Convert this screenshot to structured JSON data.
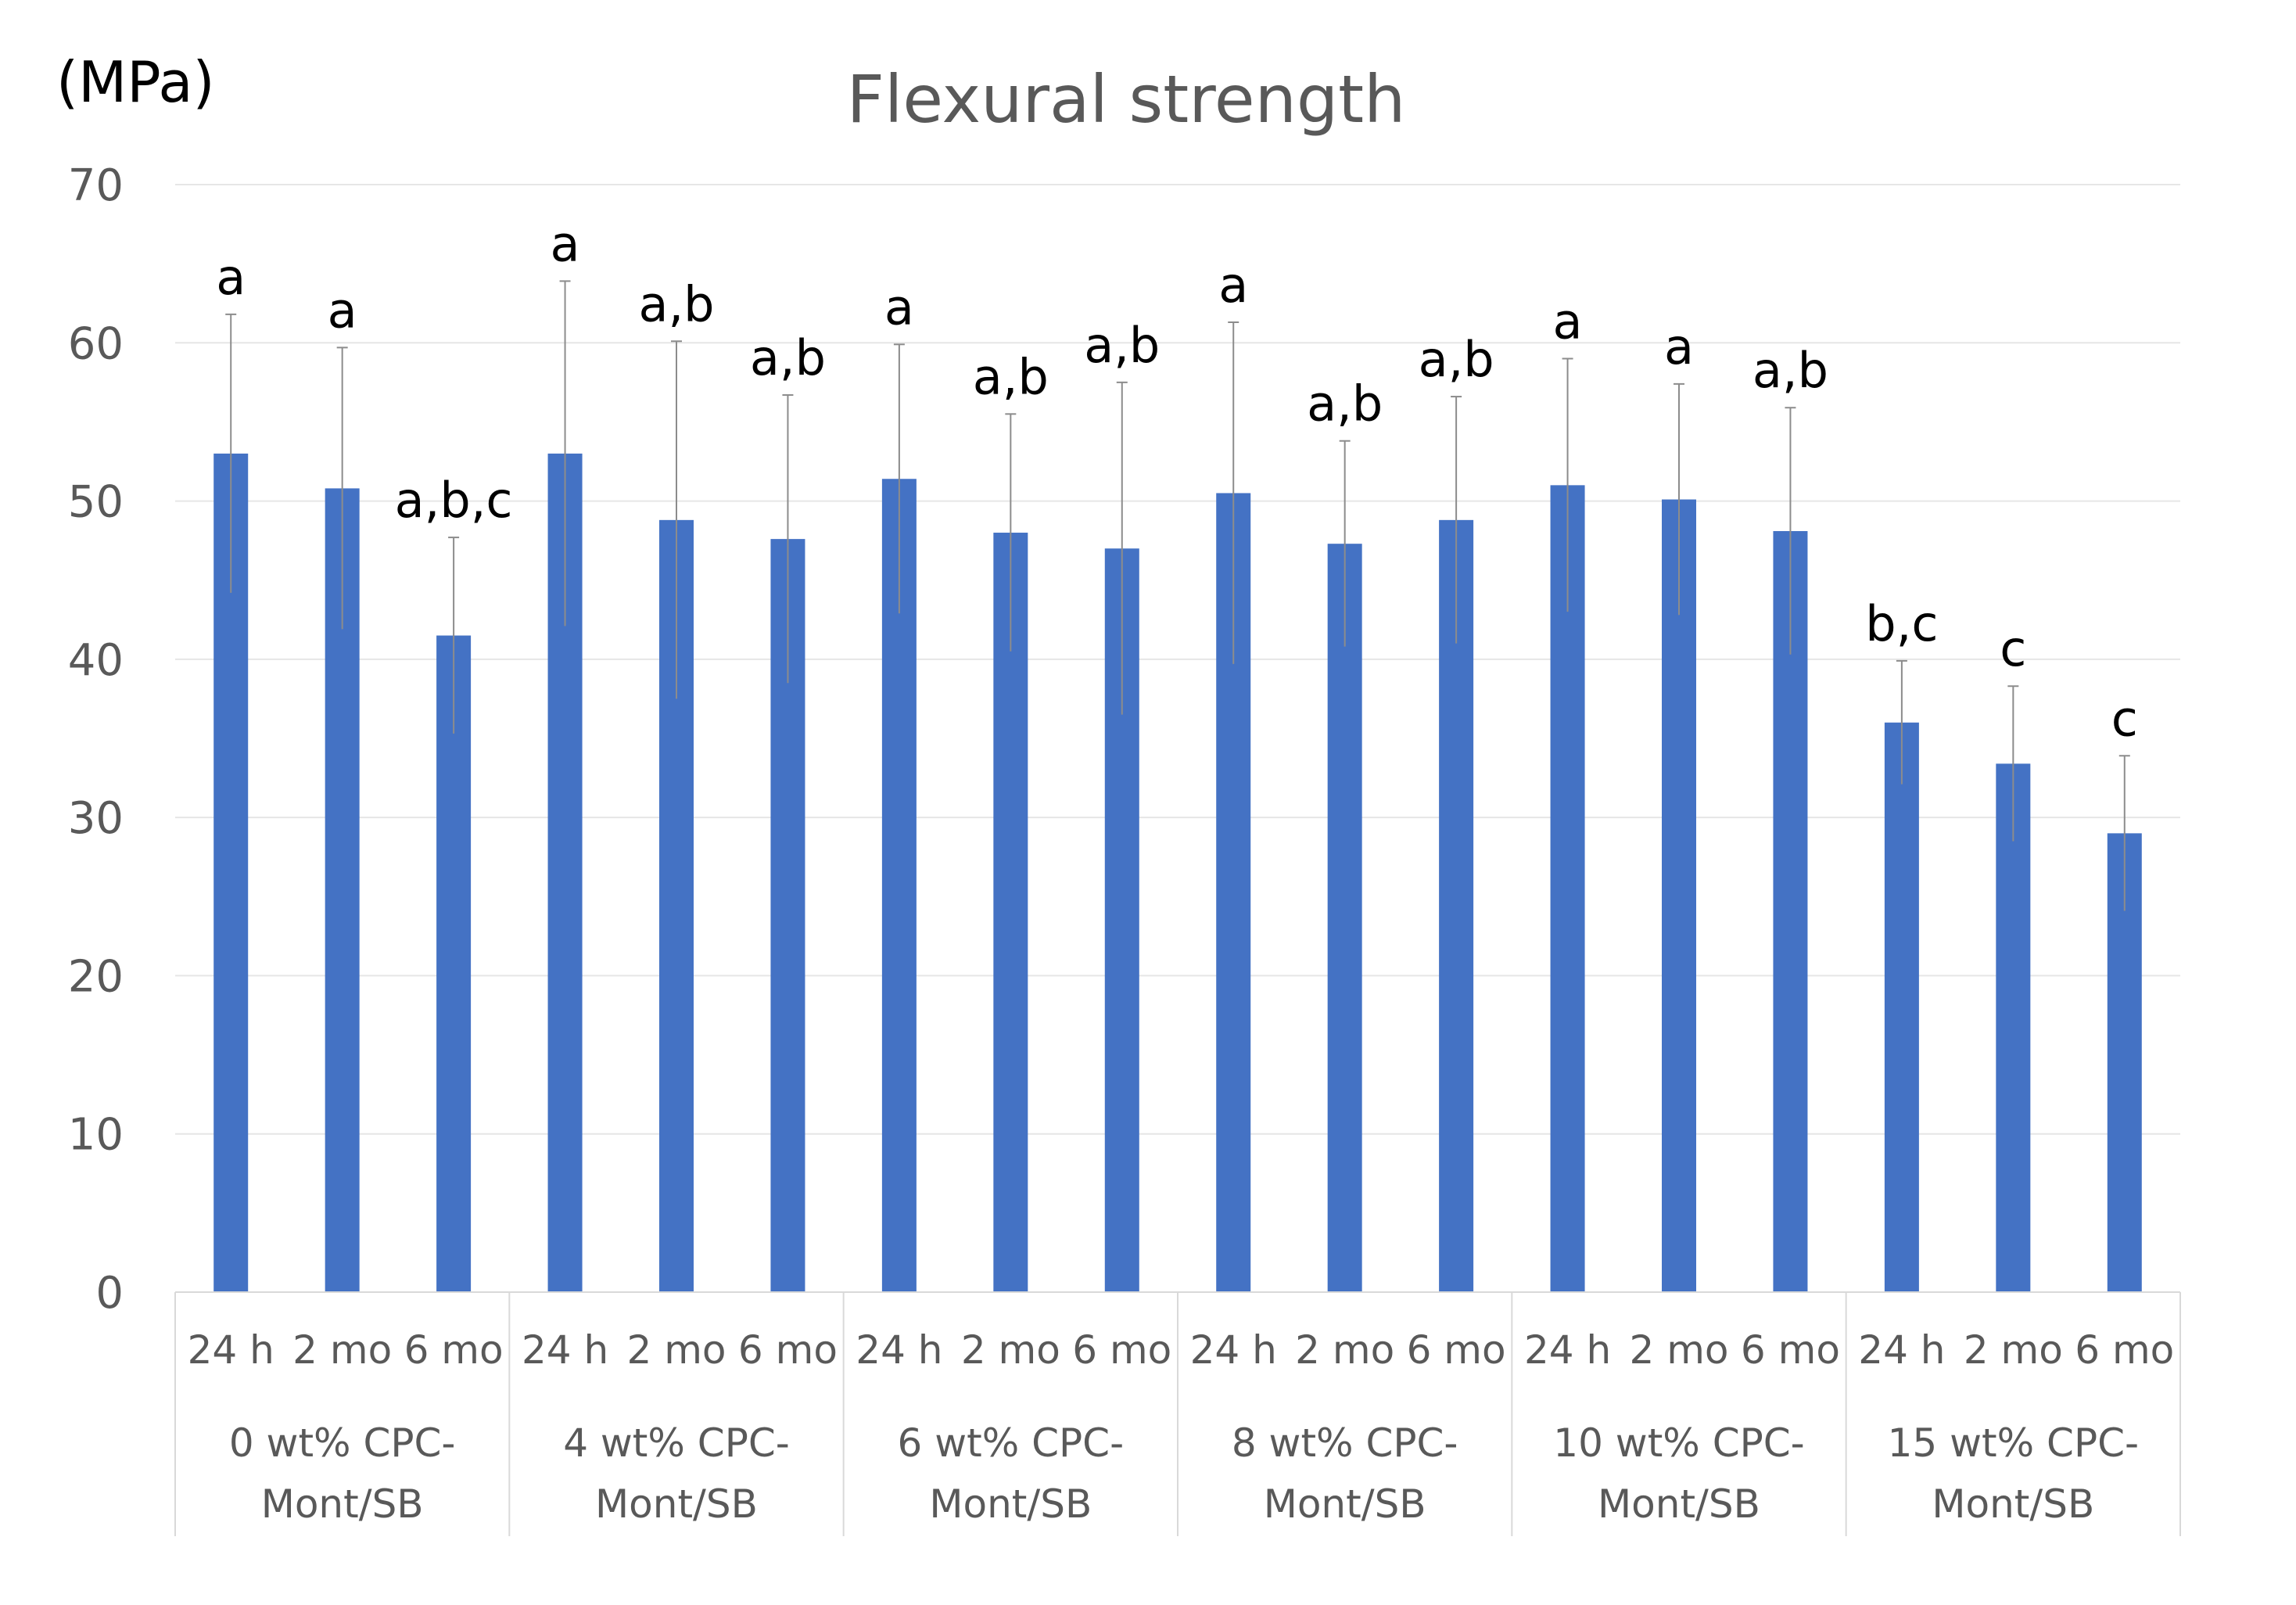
{
  "chart_data": {
    "type": "bar",
    "title": "Flexural strength",
    "ylabel": "(MPa)",
    "xlabel": "",
    "ylim": [
      0,
      70
    ],
    "yticks": [
      "0",
      "10",
      "20",
      "30",
      "40",
      "50",
      "60",
      "70"
    ],
    "grid": true,
    "legend": "none",
    "bar_color": "#4472C4",
    "groups": [
      {
        "label_lines": [
          "0 wt% CPC-",
          "Mont/SB"
        ],
        "categories": [
          "24 h",
          "2 mo",
          "6 mo"
        ],
        "values": [
          53.0,
          50.8,
          41.5
        ],
        "errors": [
          8.8,
          8.9,
          6.2
        ],
        "significance": [
          "a",
          "a",
          "a,b,c"
        ]
      },
      {
        "label_lines": [
          "4 wt% CPC-",
          "Mont/SB"
        ],
        "categories": [
          "24 h",
          "2 mo",
          "6 mo"
        ],
        "values": [
          53.0,
          48.8,
          47.6
        ],
        "errors": [
          10.9,
          11.3,
          9.1
        ],
        "significance": [
          "a",
          "a,b",
          "a,b"
        ]
      },
      {
        "label_lines": [
          "6 wt% CPC-",
          "Mont/SB"
        ],
        "categories": [
          "24 h",
          "2 mo",
          "6 mo"
        ],
        "values": [
          51.4,
          48.0,
          47.0
        ],
        "errors": [
          8.5,
          7.5,
          10.5
        ],
        "significance": [
          "a",
          "a,b",
          "a,b"
        ]
      },
      {
        "label_lines": [
          "8 wt% CPC-",
          "Mont/SB"
        ],
        "categories": [
          "24 h",
          "2 mo",
          "6 mo"
        ],
        "values": [
          50.5,
          47.3,
          48.8
        ],
        "errors": [
          10.8,
          6.5,
          7.8
        ],
        "significance": [
          "a",
          "a,b",
          "a,b"
        ]
      },
      {
        "label_lines": [
          "10 wt% CPC-",
          "Mont/SB"
        ],
        "categories": [
          "24 h",
          "2 mo",
          "6 mo"
        ],
        "values": [
          51.0,
          50.1,
          48.1
        ],
        "errors": [
          8.0,
          7.3,
          7.8
        ],
        "significance": [
          "a",
          "a",
          "a,b"
        ]
      },
      {
        "label_lines": [
          "15 wt% CPC-",
          "Mont/SB"
        ],
        "categories": [
          "24 h",
          "2 mo",
          "6 mo"
        ],
        "values": [
          36.0,
          33.4,
          29.0
        ],
        "errors": [
          3.9,
          4.9,
          4.9
        ],
        "significance": [
          "b,c",
          "c",
          "c"
        ]
      }
    ]
  }
}
